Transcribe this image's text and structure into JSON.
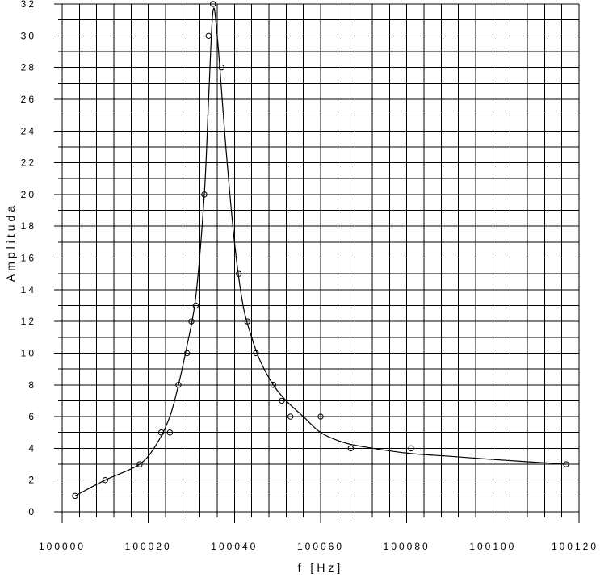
{
  "chart_data": {
    "type": "scatter",
    "xlabel": "f [Hz]",
    "ylabel": "Amplituda",
    "xlim": [
      100000,
      100120
    ],
    "ylim": [
      0,
      32
    ],
    "x_ticks": [
      100000,
      100020,
      100040,
      100060,
      100080,
      100100,
      100120
    ],
    "x_tick_labels": [
      "100000",
      "100020",
      "100040",
      "100060",
      "100080",
      "100100",
      "100120"
    ],
    "y_ticks": [
      0,
      2,
      4,
      6,
      8,
      10,
      12,
      14,
      16,
      18,
      20,
      22,
      24,
      26,
      28,
      30,
      32
    ],
    "y_tick_labels": [
      "0",
      "2",
      "4",
      "6",
      "8",
      "10",
      "12",
      "14",
      "16",
      "18",
      "20",
      "22",
      "24",
      "26",
      "28",
      "30",
      "32"
    ],
    "grid": true,
    "grid_minor_y_step": 1,
    "grid_minor_x_step": 4,
    "points": {
      "x": [
        100003,
        100010,
        100018,
        100023,
        100025,
        100027,
        100029,
        100030,
        100031,
        100033,
        100034,
        100035,
        100037,
        100041,
        100043,
        100045,
        100049,
        100051,
        100053,
        100060,
        100067,
        100081,
        100117
      ],
      "y": [
        1,
        2,
        3,
        5,
        5,
        8,
        10,
        12,
        13,
        20,
        30,
        32,
        28,
        15,
        12,
        10,
        8,
        7,
        6,
        6,
        4,
        4,
        3
      ]
    },
    "fit_curve": {
      "x": [
        100003,
        100010,
        100018,
        100022,
        100025,
        100027,
        100029,
        100031,
        100033,
        100034,
        100035,
        100036,
        100038,
        100040,
        100042,
        100044,
        100046,
        100049,
        100052,
        100056,
        100060,
        100065,
        100070,
        100080,
        100090,
        100100,
        100117
      ],
      "y": [
        1,
        2,
        3,
        4.3,
        6,
        8,
        10.5,
        13.5,
        20,
        26,
        31.5,
        30,
        23,
        17,
        13,
        11,
        9.5,
        8,
        7,
        6,
        5,
        4.4,
        4.1,
        3.7,
        3.5,
        3.3,
        3
      ]
    }
  }
}
